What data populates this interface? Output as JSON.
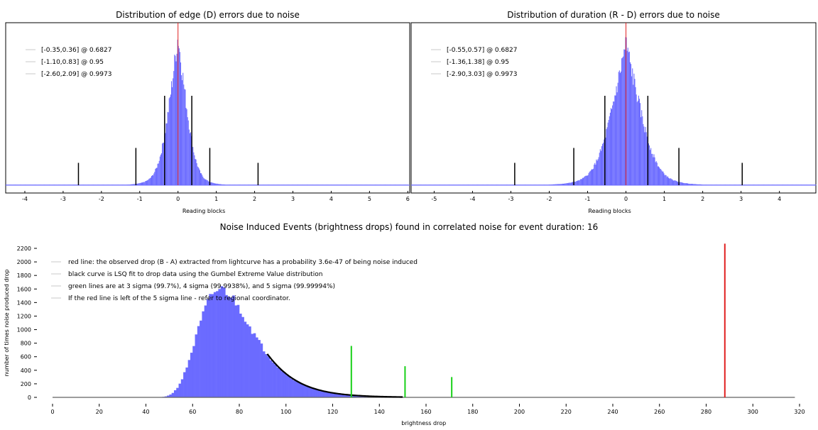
{
  "colors": {
    "histogram": "#6b6bff",
    "red_line": "#e02020",
    "black_line": "#000000",
    "green_line": "#18d018",
    "legend_swatch": "#c8c8c8",
    "baseline": "#606060"
  },
  "chart_data": [
    {
      "type": "bar",
      "title": "Distribution of edge (D) errors due to noise",
      "xlabel": "Reading blocks",
      "ylabel": "",
      "xlim": [
        -4.5,
        6.05
      ],
      "ylim": [
        0,
        1.05
      ],
      "x_ticks": [
        "-4",
        "-3",
        "-2",
        "-1",
        "0",
        "1",
        "2",
        "3",
        "4",
        "5",
        "6"
      ],
      "legend": [
        "[-0.35,0.36] @ 0.6827",
        "[-1.10,0.83] @ 0.95",
        "[-2.60,2.09] @ 0.9973"
      ],
      "histogram": {
        "center": 0,
        "sigma_left": 0.36,
        "sigma_right": 0.34,
        "bin_width": 0.02,
        "range": [
          -4.5,
          6.0
        ],
        "peak": 1.0
      },
      "zero_line": 0,
      "interval_lines": [
        {
          "x": -0.35,
          "height": 0.6
        },
        {
          "x": 0.36,
          "height": 0.6
        },
        {
          "x": -1.1,
          "height": 0.25
        },
        {
          "x": 0.83,
          "height": 0.25
        },
        {
          "x": -2.6,
          "height": 0.15
        },
        {
          "x": 2.09,
          "height": 0.15
        }
      ]
    },
    {
      "type": "bar",
      "title": "Distribution of duration (R - D) errors due to noise",
      "xlabel": "Reading blocks",
      "ylabel": "",
      "xlim": [
        -5.6,
        4.95
      ],
      "ylim": [
        0,
        1.05
      ],
      "x_ticks": [
        "-5",
        "-4",
        "-3",
        "-2",
        "-1",
        "0",
        "1",
        "2",
        "3",
        "4"
      ],
      "legend": [
        "[-0.55,0.57] @ 0.6827",
        "[-1.36,1.38] @ 0.95",
        "[-2.90,3.03] @ 0.9973"
      ],
      "histogram": {
        "center": 0,
        "sigma_left": 0.56,
        "sigma_right": 0.57,
        "bin_width": 0.02,
        "range": [
          -5.6,
          4.95
        ],
        "peak": 0.95
      },
      "zero_line": 0,
      "interval_lines": [
        {
          "x": -0.55,
          "height": 0.6
        },
        {
          "x": 0.57,
          "height": 0.6
        },
        {
          "x": -1.36,
          "height": 0.25
        },
        {
          "x": 1.38,
          "height": 0.25
        },
        {
          "x": -2.9,
          "height": 0.15
        },
        {
          "x": 3.03,
          "height": 0.15
        }
      ]
    },
    {
      "type": "bar",
      "title": "Noise Induced Events (brightness drops) found in correlated noise for event duration: 16",
      "xlabel": "brightness drop",
      "ylabel": "number of times noise produced drop",
      "xlim": [
        -5,
        325
      ],
      "ylim": [
        -50,
        2350
      ],
      "x_ticks": [
        0,
        20,
        40,
        60,
        80,
        100,
        120,
        140,
        160,
        180,
        200,
        220,
        240,
        260,
        280,
        300,
        320
      ],
      "y_ticks": [
        0,
        200,
        400,
        600,
        800,
        1000,
        1200,
        1400,
        1600,
        1800,
        2000,
        2200
      ],
      "legend": [
        "red line: the observed drop (B - A) extracted from lightcurve has a probability 3.6e-47 of being noise induced",
        "black curve is LSQ fit to drop data using the Gumbel Extreme Value distribution",
        "green lines are at 3 sigma (99.7%), 4 sigma (99.9938%), and 5 sigma (99.99994%)",
        "If the red line is left of the 5 sigma line - refer to regional coordinator."
      ],
      "histogram": {
        "mu": 72,
        "beta": 11.5,
        "n_total": 50000,
        "bin_width": 1,
        "range": [
          25,
          162
        ]
      },
      "baseline_range": [
        0,
        318
      ],
      "fit_curve_range": [
        92,
        150
      ],
      "red_line": {
        "x": 288,
        "y": 2270
      },
      "green_lines": [
        {
          "x": 128,
          "y": 760
        },
        {
          "x": 151,
          "y": 460
        },
        {
          "x": 171,
          "y": 300
        }
      ]
    }
  ]
}
